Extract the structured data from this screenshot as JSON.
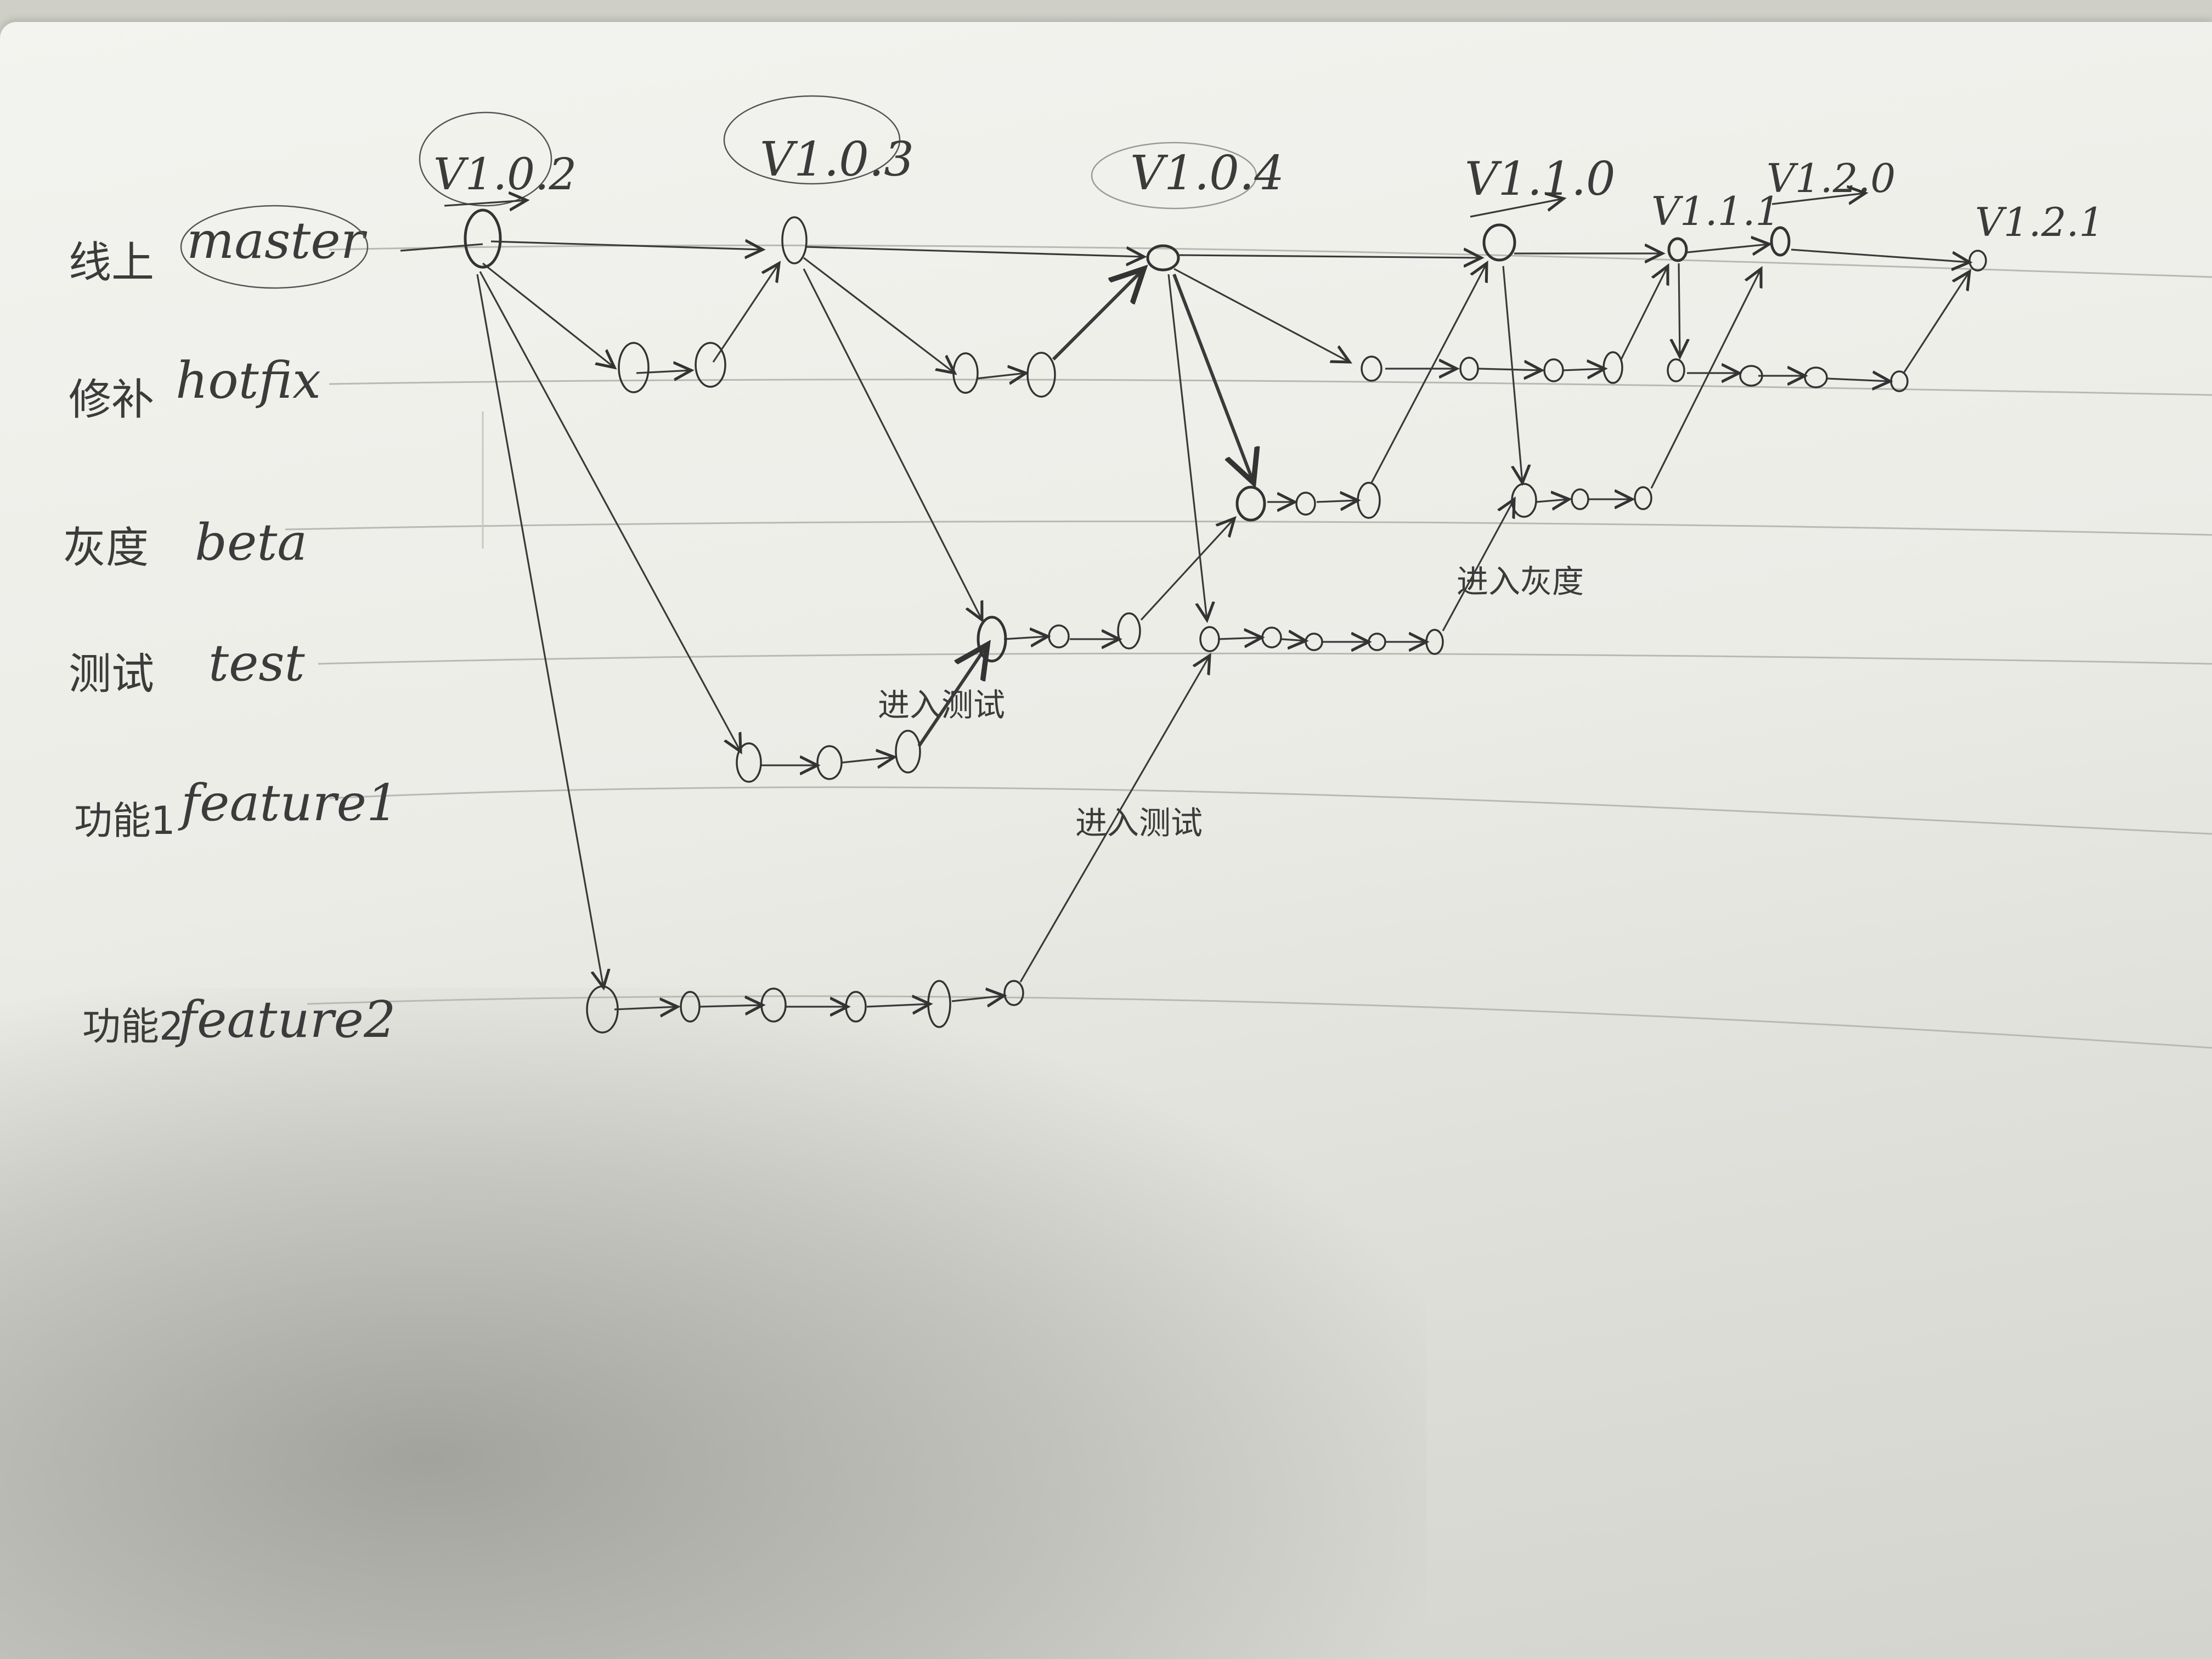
{
  "branches": [
    {
      "id": "master",
      "cn": "线上",
      "en": "master"
    },
    {
      "id": "hotfix",
      "cn": "修补",
      "en": "hotfix"
    },
    {
      "id": "beta",
      "cn": "灰度",
      "en": "beta"
    },
    {
      "id": "test",
      "cn": "测试",
      "en": "test"
    },
    {
      "id": "feature1",
      "cn": "功能1",
      "en": "feature1"
    },
    {
      "id": "feature2",
      "cn": "功能2",
      "en": "feature2"
    }
  ],
  "versions": [
    "V1.0.2",
    "V1.0.3",
    "V1.0.4",
    "V1.1.0",
    "V1.1.1",
    "V1.2.0",
    "V1.2.1"
  ],
  "annotations": {
    "into_test_1": "进入测试",
    "into_test_2": "进入测试",
    "into_beta": "进入灰度"
  }
}
